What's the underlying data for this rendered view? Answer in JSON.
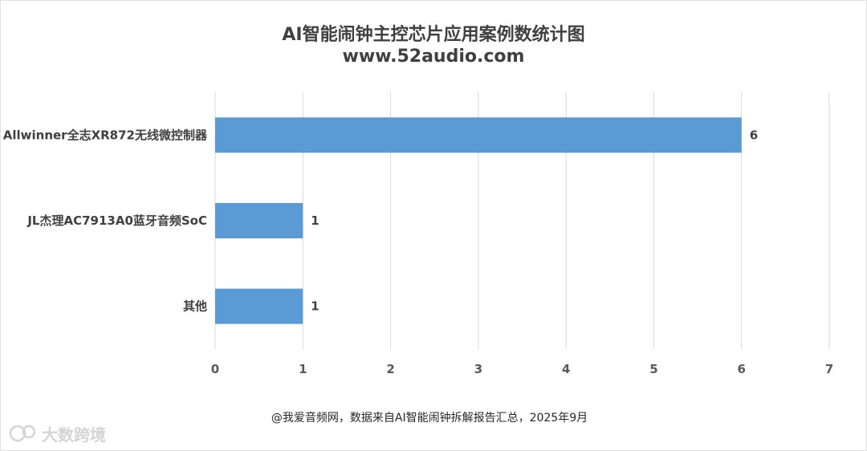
{
  "chart_data": {
    "type": "bar",
    "orientation": "horizontal",
    "title": "AI智能闹钟主控芯片应用案例数统计图",
    "subtitle": "www.52audio.com",
    "categories": [
      "Allwinner全志XR872无线微控制器",
      "JL杰理AC7913A0蓝牙音频SoC",
      "其他"
    ],
    "values": [
      6,
      1,
      1
    ],
    "xlim": [
      0,
      7
    ],
    "xticks": [
      0,
      1,
      2,
      3,
      4,
      5,
      6,
      7
    ],
    "grid": true,
    "bar_color": "#5b9bd5",
    "data_labels": true
  },
  "footer": {
    "source": "@我爱音频网，数据来自AI智能闹钟拆解报告汇总，2025年9月"
  },
  "watermark": {
    "text": "大数跨境",
    "icon": "cloud-icon"
  }
}
